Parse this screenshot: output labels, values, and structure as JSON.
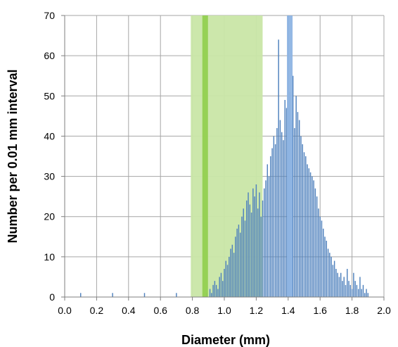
{
  "chart_data": {
    "type": "bar",
    "xlabel": "Diameter  (mm)",
    "ylabel": "Number per 0.01 mm interval",
    "xlim": [
      0.0,
      2.0
    ],
    "ylim": [
      0,
      70
    ],
    "xticks": [
      "0.0",
      "0.2",
      "0.4",
      "0.6",
      "0.8",
      "1.0",
      "1.2",
      "1.4",
      "1.6",
      "1.8",
      "2.0"
    ],
    "yticks": [
      "0",
      "10",
      "20",
      "30",
      "40",
      "50",
      "60",
      "70"
    ],
    "grid": true,
    "bin_width": 0.01,
    "series_color": "#4f81bd",
    "x": [
      0.1,
      0.3,
      0.5,
      0.7,
      0.89,
      0.91,
      0.92,
      0.93,
      0.94,
      0.95,
      0.96,
      0.97,
      0.98,
      0.99,
      1.0,
      1.01,
      1.02,
      1.03,
      1.04,
      1.05,
      1.06,
      1.07,
      1.08,
      1.09,
      1.1,
      1.11,
      1.12,
      1.13,
      1.14,
      1.15,
      1.16,
      1.17,
      1.18,
      1.19,
      1.2,
      1.21,
      1.22,
      1.23,
      1.24,
      1.25,
      1.26,
      1.27,
      1.28,
      1.29,
      1.3,
      1.31,
      1.32,
      1.33,
      1.34,
      1.35,
      1.36,
      1.37,
      1.38,
      1.39,
      1.4,
      1.41,
      1.42,
      1.43,
      1.44,
      1.45,
      1.46,
      1.47,
      1.48,
      1.49,
      1.5,
      1.51,
      1.52,
      1.53,
      1.54,
      1.55,
      1.56,
      1.57,
      1.58,
      1.59,
      1.6,
      1.61,
      1.62,
      1.63,
      1.64,
      1.65,
      1.66,
      1.67,
      1.68,
      1.69,
      1.7,
      1.71,
      1.72,
      1.73,
      1.74,
      1.75,
      1.76,
      1.77,
      1.78,
      1.79,
      1.8,
      1.81,
      1.82,
      1.83,
      1.84,
      1.85,
      1.86,
      1.87,
      1.88,
      1.89,
      1.9
    ],
    "values": [
      1,
      1,
      1,
      1,
      1,
      2,
      1,
      3,
      4,
      3,
      2,
      5,
      6,
      4,
      7,
      9,
      8,
      10,
      12,
      13,
      11,
      15,
      17,
      18,
      16,
      20,
      22,
      19,
      24,
      26,
      23,
      21,
      27,
      25,
      28,
      22,
      26,
      20,
      24,
      27,
      29,
      33,
      30,
      35,
      37,
      40,
      38,
      42,
      64,
      44,
      41,
      39,
      49,
      47,
      70,
      51,
      44,
      55,
      42,
      50,
      46,
      44,
      40,
      38,
      36,
      35,
      33,
      32,
      31,
      30,
      29,
      27,
      25,
      22,
      20,
      19,
      17,
      15,
      14,
      12,
      11,
      10,
      8,
      9,
      7,
      6,
      5,
      6,
      4,
      5,
      3,
      7,
      4,
      3,
      2,
      6,
      4,
      3,
      2,
      5,
      2,
      3,
      1,
      2,
      1
    ],
    "shaded_band": {
      "x_start": 0.79,
      "x_end": 1.24,
      "color": "#c9e6a6"
    },
    "marker_lines": [
      {
        "x": 0.88,
        "color": "#92d050"
      },
      {
        "x": 1.41,
        "color": "#8eb4e3"
      }
    ]
  }
}
